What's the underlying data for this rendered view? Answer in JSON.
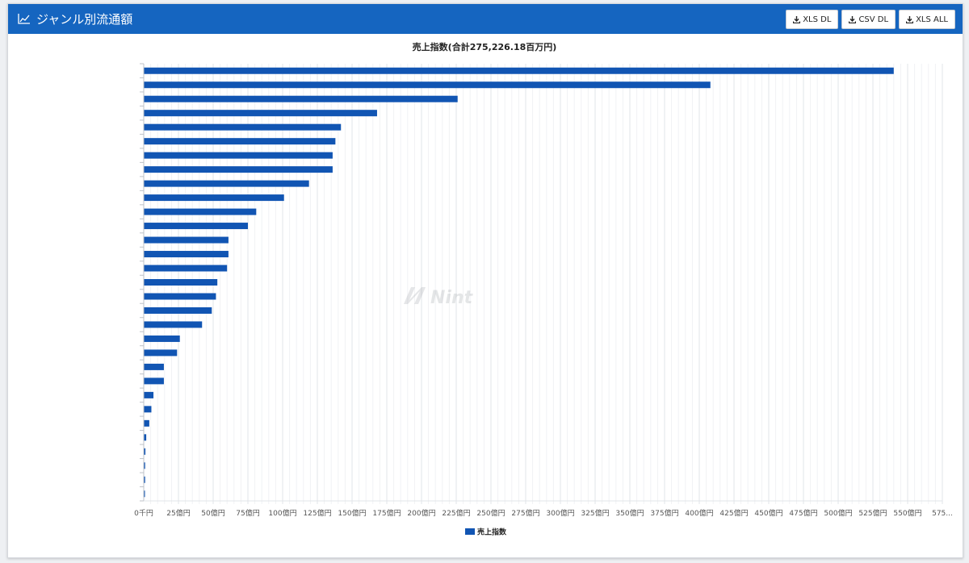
{
  "header": {
    "title": "ジャンル別流通額",
    "icon": "chart-icon",
    "buttons": [
      {
        "label": "XLS DL",
        "icon": "download-icon"
      },
      {
        "label": "CSV DL",
        "icon": "download-icon"
      },
      {
        "label": "XLS ALL",
        "icon": "download-icon"
      }
    ]
  },
  "watermark": "Nint",
  "colors": {
    "header_bg": "#1565c0",
    "bar": "#1155b3"
  },
  "chart_data": {
    "type": "bar",
    "orientation": "horizontal",
    "title": "売上指数(合計275,226.18百万円)",
    "value_unit": "億円",
    "categories": [
      "",
      "",
      "",
      "",
      "",
      "",
      "",
      "",
      "",
      "",
      "",
      "",
      "",
      "",
      "",
      "",
      "",
      "",
      "",
      "",
      "",
      "",
      "",
      "",
      "",
      "",
      "",
      "",
      "",
      "",
      ""
    ],
    "category_labels_visible": false,
    "series": [
      {
        "name": "売上指数",
        "values": [
          540,
          408,
          226,
          168,
          142,
          138,
          136,
          136,
          119,
          101,
          81,
          75,
          61,
          61,
          60,
          53,
          52,
          49,
          42,
          26,
          24,
          14.5,
          14.5,
          7,
          5.5,
          4,
          1.8,
          1.2,
          1,
          1,
          0.8
        ]
      }
    ],
    "xlim": [
      0,
      575
    ],
    "x_ticks": [
      "0千円",
      "25億円",
      "50億円",
      "75億円",
      "100億円",
      "125億円",
      "150億円",
      "175億円",
      "200億円",
      "225億円",
      "250億円",
      "275億円",
      "300億円",
      "325億円",
      "350億円",
      "375億円",
      "400億円",
      "425億円",
      "450億円",
      "475億円",
      "500億円",
      "525億円",
      "550億円",
      "575..."
    ],
    "grid": true,
    "legend": "bottom"
  }
}
